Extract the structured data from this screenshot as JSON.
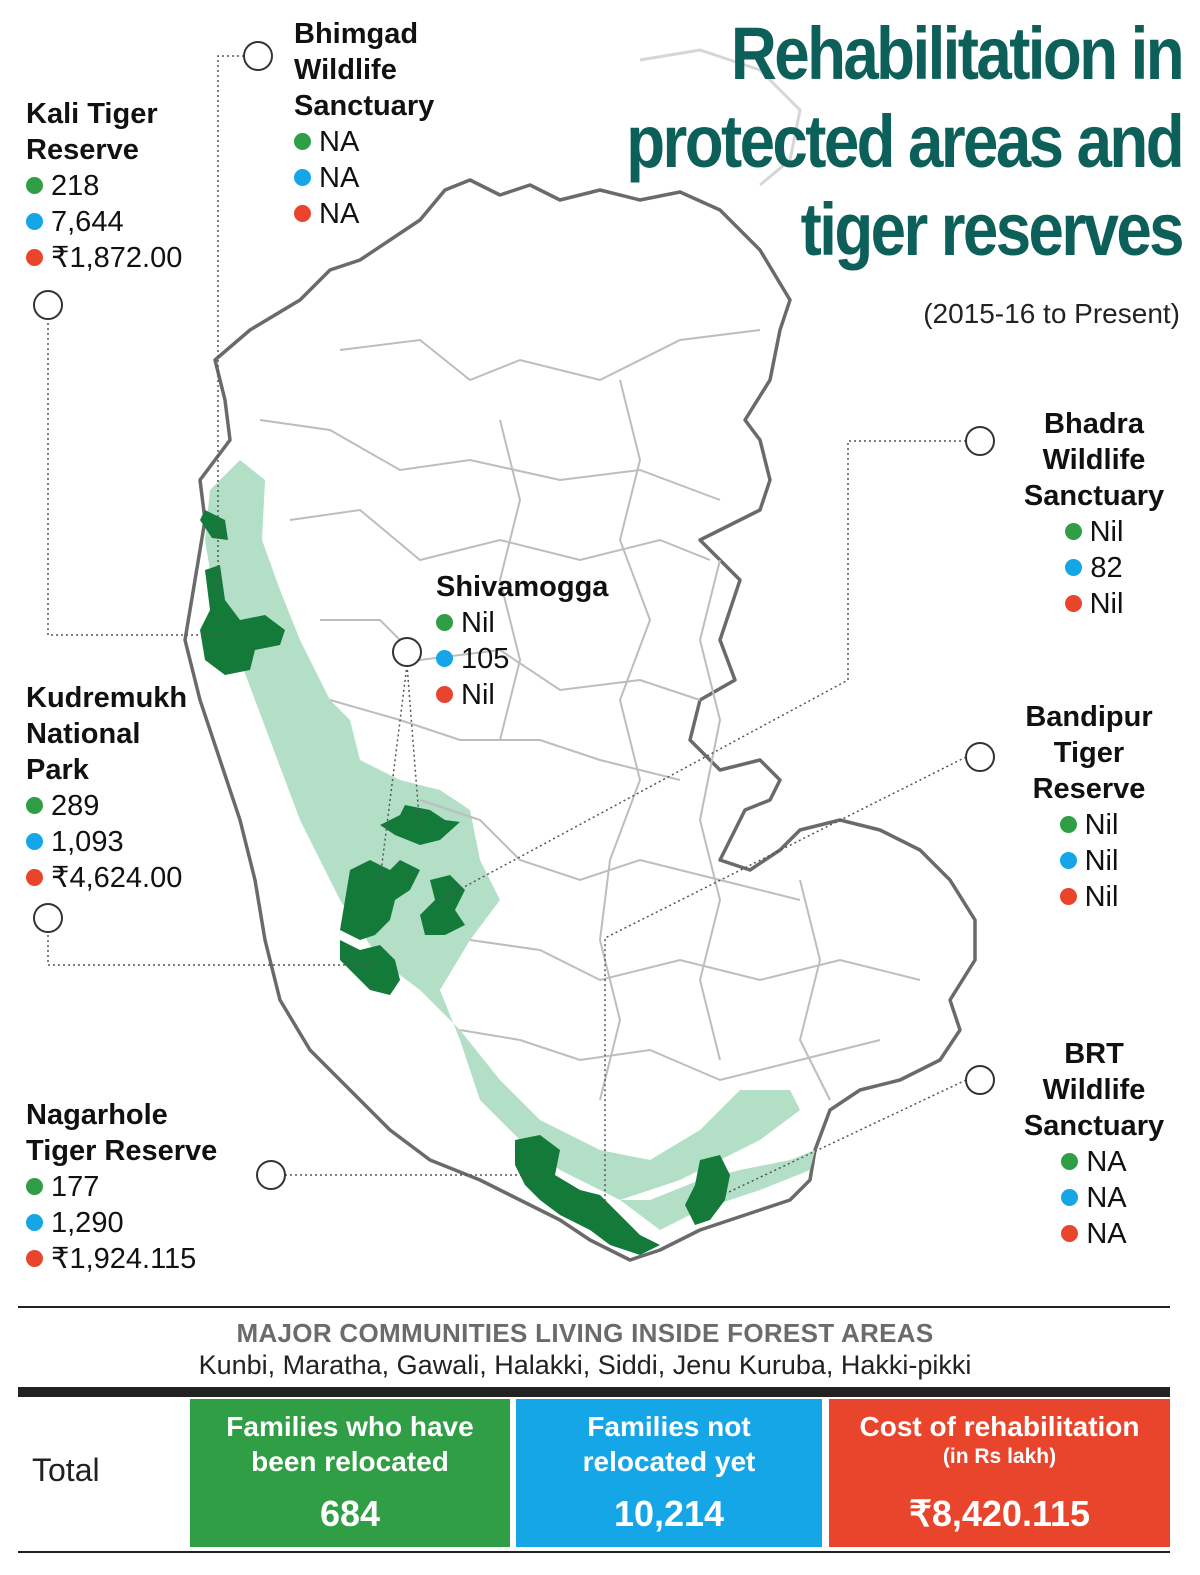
{
  "title": "Rehabilitation in protected areas and tiger reserves",
  "title_lines": [
    "Rehabilitation in",
    "protected areas and",
    "tiger reserves"
  ],
  "subtitle": "(2015-16 to Present)",
  "colors": {
    "relocated": "#2f9e44",
    "not_relocated": "#15a6e8",
    "cost": "#e8452c",
    "protected_area": "#137a3a",
    "forest_zone": "#b4dfc7",
    "title": "#0d5f5a"
  },
  "areas": [
    {
      "name_lines": [
        "Kali Tiger",
        "Reserve"
      ],
      "relocated": "218",
      "not_relocated": "7,644",
      "cost": "₹1,872.00"
    },
    {
      "name_lines": [
        "Bhimgad",
        "Wildlife",
        "Sanctuary"
      ],
      "relocated": "NA",
      "not_relocated": "NA",
      "cost": "NA"
    },
    {
      "name_lines": [
        "Shivamogga"
      ],
      "relocated": "Nil",
      "not_relocated": "105",
      "cost": "Nil"
    },
    {
      "name_lines": [
        "Kudremukh",
        "National",
        "Park"
      ],
      "relocated": "289",
      "not_relocated": "1,093",
      "cost": "₹4,624.00"
    },
    {
      "name_lines": [
        "Nagarhole",
        "Tiger Reserve"
      ],
      "relocated": "177",
      "not_relocated": "1,290",
      "cost": "₹1,924.115"
    },
    {
      "name_lines": [
        "Bhadra",
        "Wildlife",
        "Sanctuary"
      ],
      "relocated": "Nil",
      "not_relocated": "82",
      "cost": "Nil"
    },
    {
      "name_lines": [
        "Bandipur",
        "Tiger",
        "Reserve"
      ],
      "relocated": "Nil",
      "not_relocated": "Nil",
      "cost": "Nil"
    },
    {
      "name_lines": [
        "BRT",
        "Wildlife",
        "Sanctuary"
      ],
      "relocated": "NA",
      "not_relocated": "NA",
      "cost": "NA"
    }
  ],
  "communities": {
    "heading": "MAJOR COMMUNITIES LIVING INSIDE FOREST AREAS",
    "list": "Kunbi, Maratha, Gawali, Halakki, Siddi, Jenu Kuruba, Hakki-pikki"
  },
  "totals": {
    "label": "Total",
    "relocated": {
      "title_lines": [
        "Families who have",
        "been relocated"
      ],
      "value": "684"
    },
    "not_relocated": {
      "title_lines": [
        "Families not",
        "relocated yet"
      ],
      "value": "10,214"
    },
    "cost": {
      "title": "Cost of rehabilitation",
      "unit": "(in Rs lakh)",
      "value": "₹8,420.115"
    }
  }
}
